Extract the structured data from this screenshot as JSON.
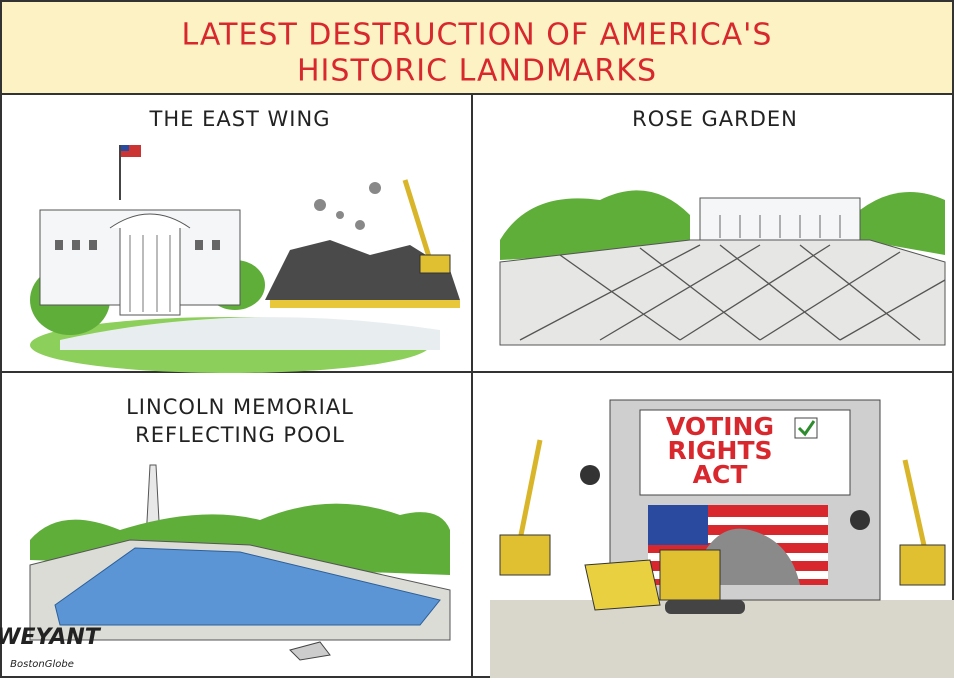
{
  "header": {
    "title_lines": [
      "LATEST DESTRUCTION OF AMERICA'S",
      "HISTORIC LANDMARKS"
    ]
  },
  "panels": [
    {
      "caption_lines": [
        "THE EAST WING"
      ]
    },
    {
      "caption_lines": [
        "ROSE GARDEN"
      ]
    },
    {
      "caption_lines": [
        "LINCOLN MEMORIAL",
        "REFLECTING POOL"
      ]
    },
    {
      "sign_lines": [
        "VOTING",
        "RIGHTS",
        "ACT"
      ]
    }
  ],
  "signature": {
    "artist": "WEYANT",
    "paper": "BostonGlobe"
  }
}
